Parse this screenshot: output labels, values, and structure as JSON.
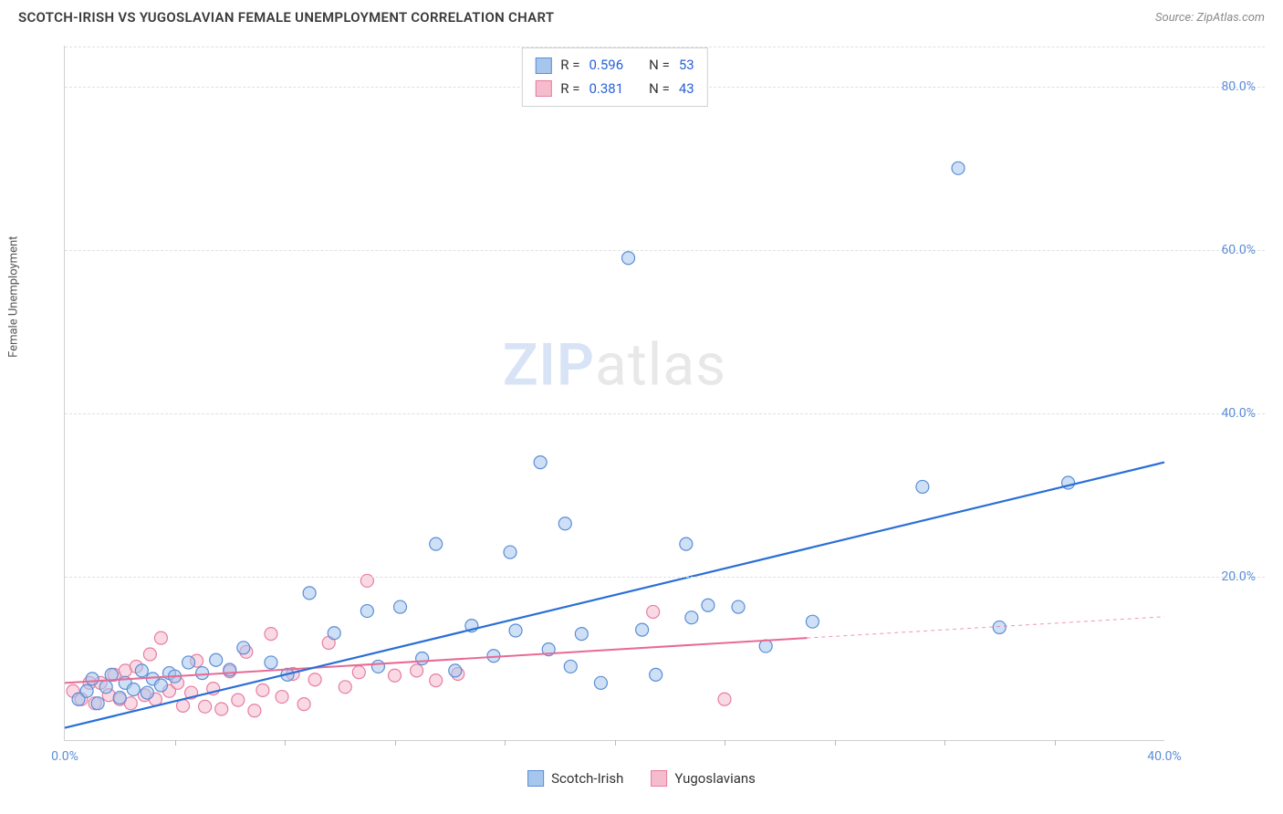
{
  "title": "SCOTCH-IRISH VS YUGOSLAVIAN FEMALE UNEMPLOYMENT CORRELATION CHART",
  "source": "Source: ZipAtlas.com",
  "y_axis_label": "Female Unemployment",
  "watermark_bold": "ZIP",
  "watermark_rest": "atlas",
  "chart": {
    "type": "scatter",
    "xlim": [
      0,
      40
    ],
    "ylim": [
      0,
      85
    ],
    "x_ticks": [
      0,
      40
    ],
    "x_ticks_minor": [
      4,
      8,
      12,
      16,
      20,
      24,
      28,
      32,
      36
    ],
    "y_ticks": [
      20,
      40,
      60,
      80
    ],
    "x_tick_format": "pct1",
    "y_tick_format": "pct1",
    "grid_color": "#e0e0e0",
    "axis_color": "#d0d0d0",
    "background": "#ffffff",
    "marker_radius": 7,
    "marker_stroke_width": 1.2,
    "series": [
      {
        "name": "Scotch-Irish",
        "fill": "#a6c6ed",
        "stroke": "#5b8dd6",
        "fill_opacity": 0.55,
        "line_color": "#2a6fd6",
        "line_width": 2.2,
        "trend": {
          "x1": 0,
          "y1": 1.5,
          "x2": 40,
          "y2": 34
        },
        "points": [
          [
            0.5,
            5
          ],
          [
            0.8,
            6
          ],
          [
            1,
            7.5
          ],
          [
            1.2,
            4.5
          ],
          [
            1.5,
            6.5
          ],
          [
            1.7,
            8
          ],
          [
            2,
            5.2
          ],
          [
            2.2,
            7
          ],
          [
            2.5,
            6.2
          ],
          [
            2.8,
            8.5
          ],
          [
            3,
            5.8
          ],
          [
            3.2,
            7.5
          ],
          [
            3.5,
            6.7
          ],
          [
            3.8,
            8.2
          ],
          [
            4,
            7.8
          ],
          [
            4.5,
            9.5
          ],
          [
            5,
            8.2
          ],
          [
            5.5,
            9.8
          ],
          [
            6,
            8.6
          ],
          [
            6.5,
            11.3
          ],
          [
            7.5,
            9.5
          ],
          [
            8.1,
            8.0
          ],
          [
            8.9,
            18.0
          ],
          [
            9.8,
            13.1
          ],
          [
            11.0,
            15.8
          ],
          [
            11.4,
            9.0
          ],
          [
            12.2,
            16.3
          ],
          [
            13.0,
            10.0
          ],
          [
            13.5,
            24.0
          ],
          [
            14.2,
            8.5
          ],
          [
            14.8,
            14.0
          ],
          [
            15.6,
            10.3
          ],
          [
            16.2,
            23.0
          ],
          [
            16.4,
            13.4
          ],
          [
            17.3,
            34.0
          ],
          [
            17.6,
            11.1
          ],
          [
            18.2,
            26.5
          ],
          [
            18.4,
            9.0
          ],
          [
            18.8,
            13.0
          ],
          [
            19.5,
            7.0
          ],
          [
            20.5,
            59.0
          ],
          [
            21.0,
            13.5
          ],
          [
            21.5,
            8.0
          ],
          [
            22.6,
            24.0
          ],
          [
            22.8,
            15.0
          ],
          [
            23.4,
            16.5
          ],
          [
            24.5,
            16.3
          ],
          [
            25.5,
            11.5
          ],
          [
            27.2,
            14.5
          ],
          [
            31.2,
            31.0
          ],
          [
            32.5,
            70.0
          ],
          [
            34.0,
            13.8
          ],
          [
            36.5,
            31.5
          ]
        ]
      },
      {
        "name": "Yugoslavians",
        "fill": "#f4bccd",
        "stroke": "#e87da2",
        "fill_opacity": 0.55,
        "line_color": "#e86b95",
        "line_width": 2.0,
        "trend": {
          "x1": 0,
          "y1": 7.0,
          "x2": 27,
          "y2": 12.5
        },
        "trend_dash_extend": {
          "x1": 27,
          "y1": 12.5,
          "x2": 40,
          "y2": 15.1
        },
        "points": [
          [
            0.3,
            6
          ],
          [
            0.6,
            5
          ],
          [
            0.9,
            7
          ],
          [
            1.1,
            4.5
          ],
          [
            1.3,
            7
          ],
          [
            1.6,
            5.5
          ],
          [
            1.8,
            8
          ],
          [
            2,
            5
          ],
          [
            2.2,
            8.5
          ],
          [
            2.4,
            4.5
          ],
          [
            2.6,
            9
          ],
          [
            2.9,
            5.5
          ],
          [
            3.1,
            10.5
          ],
          [
            3.3,
            5
          ],
          [
            3.5,
            12.5
          ],
          [
            3.8,
            6
          ],
          [
            4.1,
            7
          ],
          [
            4.3,
            4.2
          ],
          [
            4.6,
            5.8
          ],
          [
            4.8,
            9.7
          ],
          [
            5.1,
            4.1
          ],
          [
            5.4,
            6.3
          ],
          [
            5.7,
            3.8
          ],
          [
            6.0,
            8.4
          ],
          [
            6.3,
            4.9
          ],
          [
            6.6,
            10.8
          ],
          [
            6.9,
            3.6
          ],
          [
            7.2,
            6.1
          ],
          [
            7.5,
            13.0
          ],
          [
            7.9,
            5.3
          ],
          [
            8.3,
            8.1
          ],
          [
            8.7,
            4.4
          ],
          [
            9.1,
            7.4
          ],
          [
            9.6,
            11.9
          ],
          [
            10.2,
            6.5
          ],
          [
            10.7,
            8.3
          ],
          [
            11.0,
            19.5
          ],
          [
            12.0,
            7.9
          ],
          [
            12.8,
            8.5
          ],
          [
            13.5,
            7.3
          ],
          [
            14.3,
            8.1
          ],
          [
            21.4,
            15.7
          ],
          [
            24.0,
            5.0
          ]
        ]
      }
    ],
    "stats": [
      {
        "series": 0,
        "R": "0.596",
        "N": "53"
      },
      {
        "series": 1,
        "R": "0.381",
        "N": "43"
      }
    ],
    "stat_labels": {
      "R": "R =",
      "N": "N ="
    }
  },
  "legend": {
    "series1": "Scotch-Irish",
    "series2": "Yugoslavians"
  }
}
